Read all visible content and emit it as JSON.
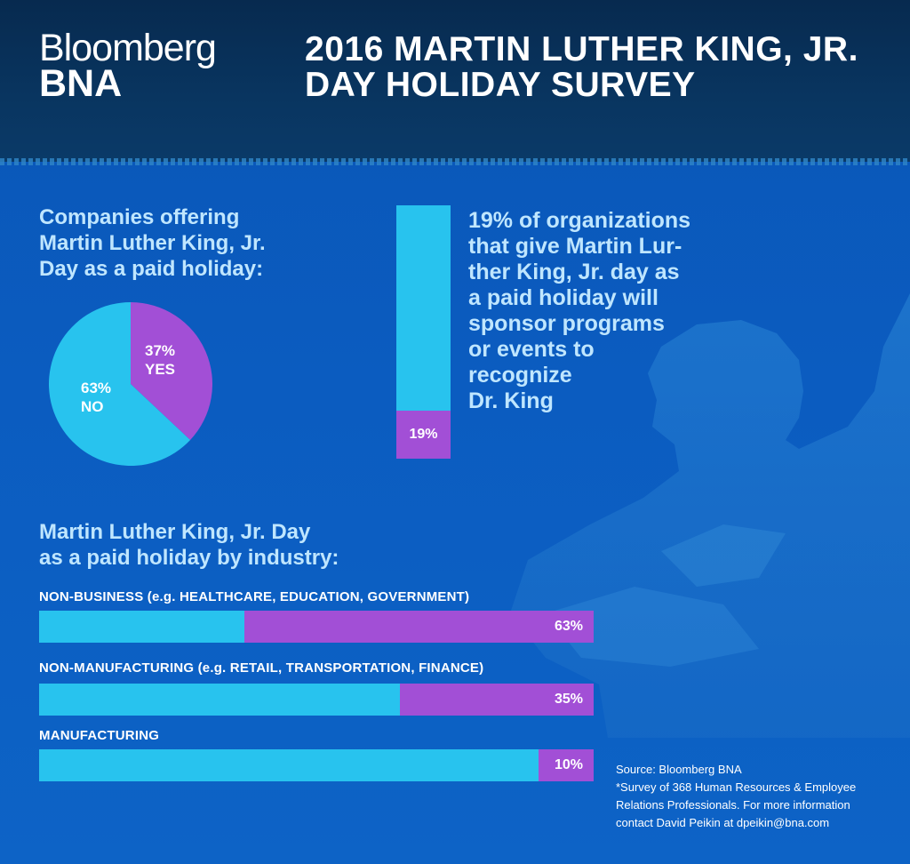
{
  "header": {
    "logo_line1": "Bloomberg",
    "logo_line2": "BNA",
    "title_line1": "2016 MARTIN LUTHER KING, JR.",
    "title_line2": "DAY HOLIDAY SURVEY"
  },
  "colors": {
    "cyan": "#28c3ee",
    "purple": "#a24fd6",
    "light_text": "#bfe6ff"
  },
  "pie_section": {
    "title_lines": [
      "Companies offering",
      "Martin Luther King, Jr.",
      "Day as a paid holiday:"
    ],
    "yes_pct": "37%",
    "yes_label": "YES",
    "no_pct": "63%",
    "no_label": "NO"
  },
  "callout": {
    "bar_label": "19%",
    "lines": [
      "19% of organizations",
      "that give Martin Lur-",
      "ther King, Jr. day as",
      "a paid holiday will",
      "sponsor programs",
      "or events to",
      "recognize",
      "Dr. King"
    ]
  },
  "industry": {
    "title_lines": [
      "Martin Luther King, Jr. Day",
      "as a paid holiday by industry:"
    ],
    "rows": [
      {
        "label": "NON-BUSINESS (e.g. HEALTHCARE, EDUCATION, GOVERNMENT)",
        "value_label": "63%"
      },
      {
        "label": "NON-MANUFACTURING (e.g. RETAIL, TRANSPORTATION, FINANCE)",
        "value_label": "35%"
      },
      {
        "label": "MANUFACTURING",
        "value_label": "10%"
      }
    ]
  },
  "source": {
    "lines": [
      "Source: Bloomberg BNA",
      "*Survey of 368 Human Resources & Employee",
      "Relations Professionals. For more information",
      "contact David Peikin at dpeikin@bna.com"
    ]
  },
  "chart_data": [
    {
      "type": "pie",
      "title": "Companies offering Martin Luther King, Jr. Day as a paid holiday:",
      "categories": [
        "YES",
        "NO"
      ],
      "values": [
        37,
        63
      ]
    },
    {
      "type": "bar",
      "title": "19% of organizations that give Martin Luther King, Jr. day as a paid holiday will sponsor programs or events to recognize Dr. King",
      "categories": [
        "Sponsor programs or events"
      ],
      "values": [
        19
      ],
      "ylim": [
        0,
        100
      ]
    },
    {
      "type": "bar",
      "title": "Martin Luther King, Jr. Day as a paid holiday by industry:",
      "categories": [
        "NON-BUSINESS (e.g. HEALTHCARE, EDUCATION, GOVERNMENT)",
        "NON-MANUFACTURING (e.g. RETAIL, TRANSPORTATION, FINANCE)",
        "MANUFACTURING"
      ],
      "values": [
        63,
        35,
        10
      ],
      "xlim": [
        0,
        100
      ]
    }
  ]
}
